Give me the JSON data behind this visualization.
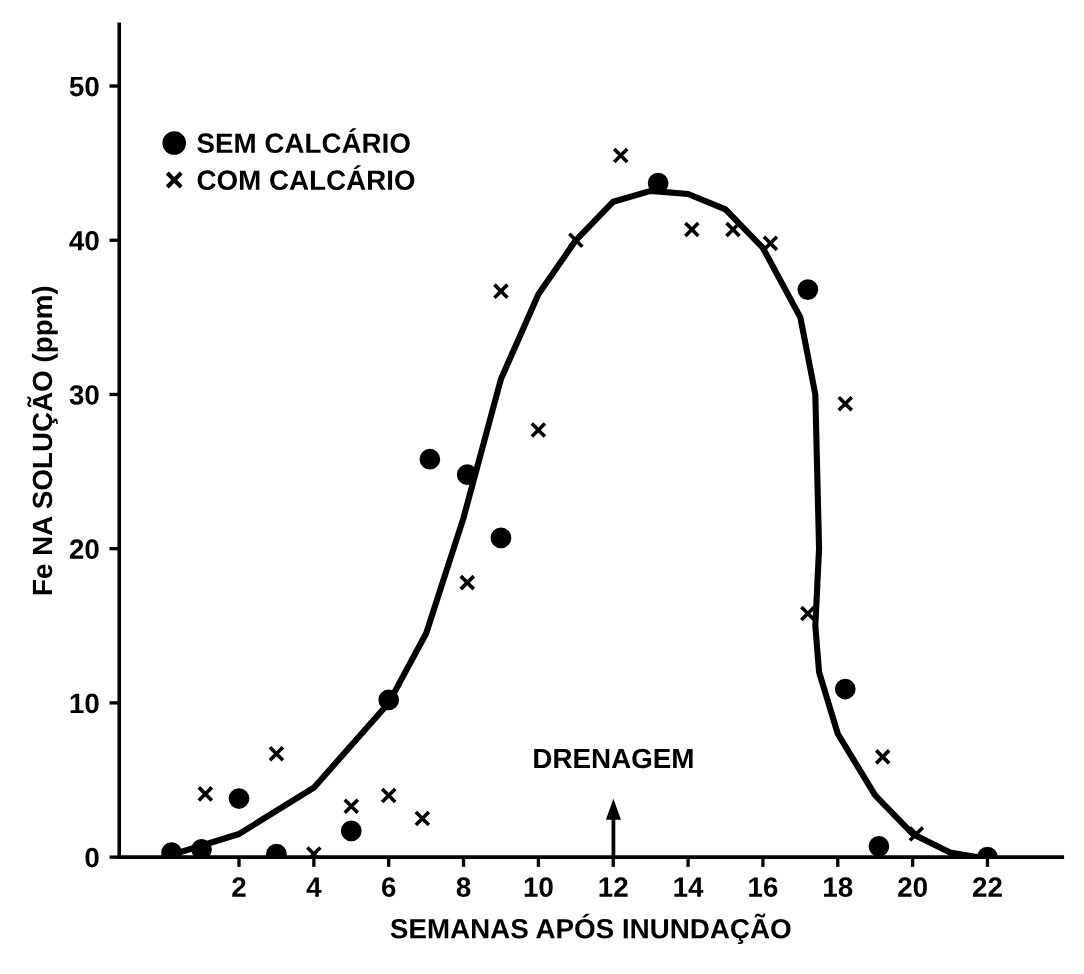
{
  "chart_data": {
    "type": "scatter",
    "xlabel": "SEMANAS APÓS INUNDAÇÃO",
    "ylabel": "Fe NA SOLUÇÃO (ppm)",
    "xlim": [
      -1.2,
      24
    ],
    "ylim": [
      0,
      54
    ],
    "xticks": [
      2,
      4,
      6,
      8,
      10,
      12,
      14,
      16,
      18,
      20,
      22
    ],
    "yticks": [
      0,
      10,
      20,
      30,
      40,
      50
    ],
    "grid": false,
    "legend": "top left",
    "series": [
      {
        "name": "SEM CALCÁRIO",
        "color": "#000000",
        "marker": "circle",
        "x": [
          0.2,
          1.0,
          2.0,
          3.0,
          5.0,
          6.0,
          7.1,
          8.1,
          9.0,
          13.2,
          17.2,
          18.2,
          19.1,
          22.0
        ],
        "values": [
          0.3,
          0.5,
          3.8,
          0.2,
          1.7,
          10.2,
          25.8,
          24.8,
          20.7,
          43.7,
          36.8,
          10.9,
          0.7,
          0.0
        ]
      },
      {
        "name": "COM CALCÁRIO",
        "color": "#000000",
        "marker": "cross",
        "x": [
          1.1,
          3.0,
          4.0,
          5.0,
          6.0,
          6.9,
          8.1,
          9.0,
          10.0,
          11.0,
          12.2,
          14.1,
          15.2,
          16.2,
          17.2,
          18.2,
          19.2,
          20.1
        ],
        "values": [
          4.1,
          6.7,
          0.2,
          3.3,
          4.0,
          2.5,
          17.8,
          36.7,
          27.7,
          40.0,
          45.5,
          40.7,
          40.7,
          39.8,
          15.8,
          29.4,
          6.5,
          1.5
        ]
      },
      {
        "type": "line",
        "color": "#000000",
        "line_style": "solid",
        "x": [
          0,
          2,
          4,
          6,
          7,
          8,
          9,
          10,
          11,
          12,
          13,
          14,
          15,
          16,
          17,
          17.4,
          17.5,
          17.4,
          17.5,
          18,
          19,
          20,
          21,
          21.7
        ],
        "values": [
          0,
          1.5,
          4.5,
          10,
          14.5,
          22,
          31,
          36.5,
          40,
          42.5,
          43.2,
          43,
          42,
          39.5,
          35,
          30,
          20,
          15,
          12,
          8,
          4,
          1.5,
          0.3,
          0
        ]
      }
    ],
    "annotations": [
      "DRENAGEM"
    ]
  }
}
